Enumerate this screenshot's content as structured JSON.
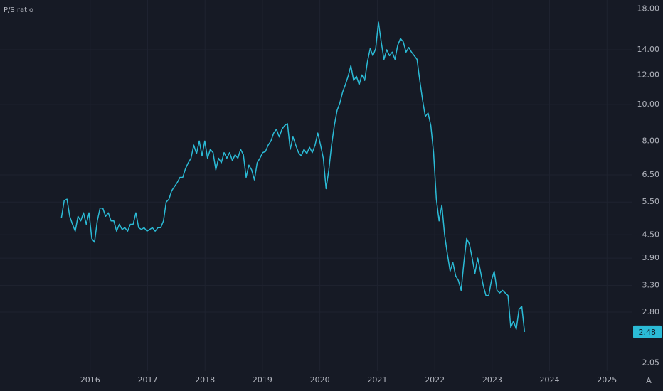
{
  "chart_data": {
    "type": "line",
    "log_y": true,
    "grid": true,
    "legend": "top-left",
    "buttons": [
      "A"
    ],
    "xlim": [
      2014.43,
      2025.43
    ],
    "xticks": [
      2016,
      2017,
      2018,
      2019,
      2020,
      2021,
      2022,
      2023,
      2024,
      2025
    ],
    "ylim": [
      1.95,
      19
    ],
    "yticks": [
      {
        "value": 2.05,
        "label": "2.05"
      },
      {
        "value": 2.8,
        "label": "2.80"
      },
      {
        "value": 3.3,
        "label": "3.30"
      },
      {
        "value": 3.9,
        "label": "3.90"
      },
      {
        "value": 4.5,
        "label": "4.50"
      },
      {
        "value": 5.5,
        "label": "5.50"
      },
      {
        "value": 6.5,
        "label": "6.50"
      },
      {
        "value": 8,
        "label": "8.00"
      },
      {
        "value": 10,
        "label": "10.00"
      },
      {
        "value": 12,
        "label": "12.00"
      },
      {
        "value": 14,
        "label": "14.00"
      },
      {
        "value": 18,
        "label": "18.00"
      }
    ],
    "x": [
      2015.5,
      2015.548,
      2015.596,
      2015.644,
      2015.692,
      2015.74,
      2015.788,
      2015.836,
      2015.884,
      2015.932,
      2015.98,
      2016.028,
      2016.076,
      2016.124,
      2016.172,
      2016.22,
      2016.268,
      2016.316,
      2016.364,
      2016.412,
      2016.46,
      2016.508,
      2016.556,
      2016.604,
      2016.652,
      2016.7,
      2016.748,
      2016.796,
      2016.844,
      2016.892,
      2016.94,
      2016.988,
      2017.036,
      2017.084,
      2017.132,
      2017.18,
      2017.228,
      2017.276,
      2017.324,
      2017.372,
      2017.42,
      2017.468,
      2017.516,
      2017.564,
      2017.612,
      2017.66,
      2017.708,
      2017.756,
      2017.804,
      2017.852,
      2017.9,
      2017.948,
      2017.996,
      2018.044,
      2018.092,
      2018.14,
      2018.188,
      2018.236,
      2018.284,
      2018.332,
      2018.38,
      2018.428,
      2018.476,
      2018.524,
      2018.572,
      2018.62,
      2018.668,
      2018.716,
      2018.764,
      2018.812,
      2018.86,
      2018.908,
      2018.956,
      2019.004,
      2019.052,
      2019.1,
      2019.148,
      2019.196,
      2019.244,
      2019.292,
      2019.34,
      2019.388,
      2019.436,
      2019.484,
      2019.532,
      2019.58,
      2019.628,
      2019.676,
      2019.724,
      2019.772,
      2019.82,
      2019.868,
      2019.916,
      2019.964,
      2020.012,
      2020.06,
      2020.108,
      2020.156,
      2020.204,
      2020.252,
      2020.3,
      2020.348,
      2020.396,
      2020.444,
      2020.492,
      2020.54,
      2020.588,
      2020.636,
      2020.684,
      2020.732,
      2020.78,
      2020.828,
      2020.876,
      2020.924,
      2020.972,
      2021.02,
      2021.068,
      2021.116,
      2021.164,
      2021.212,
      2021.26,
      2021.308,
      2021.356,
      2021.404,
      2021.452,
      2021.5,
      2021.548,
      2021.596,
      2021.644,
      2021.692,
      2021.74,
      2021.788,
      2021.836,
      2021.884,
      2021.932,
      2021.98,
      2022.028,
      2022.076,
      2022.124,
      2022.172,
      2022.22,
      2022.268,
      2022.316,
      2022.364,
      2022.412,
      2022.46,
      2022.508,
      2022.556,
      2022.604,
      2022.652,
      2022.7,
      2022.748,
      2022.796,
      2022.844,
      2022.892,
      2022.94,
      2022.988,
      2023.036,
      2023.084,
      2023.132,
      2023.18,
      2023.228,
      2023.276,
      2023.324,
      2023.372,
      2023.42,
      2023.468,
      2023.516,
      2023.564
    ],
    "series": [
      {
        "name": "P/S ratio",
        "color": "#2bbbd6",
        "values": [
          5.0,
          5.55,
          5.6,
          5.04,
          4.8,
          4.6,
          5.04,
          4.9,
          5.15,
          4.8,
          5.15,
          4.4,
          4.3,
          4.9,
          5.3,
          5.3,
          5.04,
          5.15,
          4.9,
          4.9,
          4.6,
          4.8,
          4.65,
          4.7,
          4.6,
          4.8,
          4.8,
          5.15,
          4.7,
          4.65,
          4.7,
          4.6,
          4.65,
          4.7,
          4.6,
          4.7,
          4.7,
          4.9,
          5.5,
          5.6,
          5.9,
          6.05,
          6.2,
          6.4,
          6.4,
          6.75,
          7.0,
          7.2,
          7.8,
          7.4,
          8.0,
          7.3,
          8.0,
          7.2,
          7.6,
          7.45,
          6.7,
          7.2,
          7.0,
          7.45,
          7.2,
          7.45,
          7.1,
          7.35,
          7.2,
          7.6,
          7.35,
          6.4,
          6.9,
          6.7,
          6.3,
          7.0,
          7.2,
          7.45,
          7.5,
          7.8,
          8.0,
          8.4,
          8.6,
          8.2,
          8.6,
          8.8,
          8.9,
          7.6,
          8.2,
          7.8,
          7.45,
          7.3,
          7.6,
          7.4,
          7.7,
          7.45,
          7.8,
          8.4,
          7.8,
          7.2,
          5.97,
          6.7,
          7.8,
          8.8,
          9.65,
          10.1,
          10.8,
          11.3,
          11.9,
          12.7,
          11.6,
          11.9,
          11.3,
          12.0,
          11.6,
          13.0,
          14.1,
          13.5,
          14.1,
          16.6,
          14.7,
          13.2,
          14.0,
          13.5,
          13.8,
          13.2,
          14.4,
          15.0,
          14.7,
          13.8,
          14.2,
          13.8,
          13.5,
          13.2,
          11.6,
          10.3,
          9.3,
          9.5,
          8.8,
          7.45,
          5.6,
          4.9,
          5.4,
          4.5,
          4.0,
          3.6,
          3.8,
          3.5,
          3.4,
          3.2,
          3.8,
          4.4,
          4.25,
          3.9,
          3.55,
          3.9,
          3.6,
          3.3,
          3.1,
          3.1,
          3.4,
          3.6,
          3.2,
          3.15,
          3.2,
          3.15,
          3.1,
          2.55,
          2.65,
          2.52,
          2.85,
          2.9,
          2.48
        ]
      }
    ]
  }
}
